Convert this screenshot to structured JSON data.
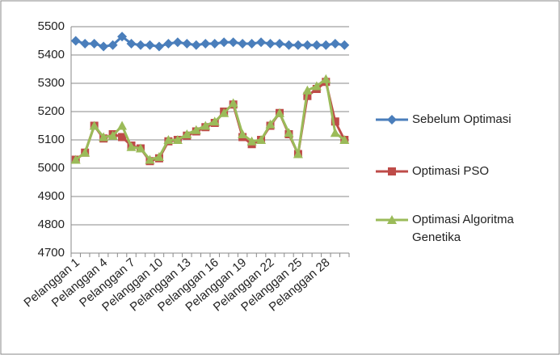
{
  "chart_data": {
    "type": "line",
    "categories": [
      "Pelanggan 1",
      null,
      null,
      "Pelanggan 4",
      null,
      null,
      "Pelanggan 7",
      null,
      null,
      "Pelanggan 10",
      null,
      null,
      "Pelanggan 13",
      null,
      null,
      "Pelanggan 16",
      null,
      null,
      "Pelanggan 19",
      null,
      null,
      "Pelanggan 22",
      null,
      null,
      "Pelanggan 25",
      null,
      null,
      "Pelanggan 28",
      null,
      null
    ],
    "series": [
      {
        "name": "Sebelum Optimasi",
        "color": "#4a7ebb",
        "marker": "diamond",
        "values": [
          5450,
          5440,
          5440,
          5430,
          5435,
          5465,
          5440,
          5435,
          5435,
          5430,
          5440,
          5445,
          5440,
          5435,
          5440,
          5440,
          5445,
          5445,
          5440,
          5440,
          5445,
          5440,
          5440,
          5435,
          5435,
          5435,
          5435,
          5435,
          5440,
          5435
        ]
      },
      {
        "name": "Optimasi PSO",
        "color": "#be4b48",
        "marker": "square",
        "values": [
          5030,
          5055,
          5150,
          5105,
          5120,
          5110,
          5080,
          5070,
          5025,
          5035,
          5095,
          5100,
          5115,
          5130,
          5145,
          5160,
          5200,
          5225,
          5110,
          5085,
          5100,
          5150,
          5195,
          5120,
          5050,
          5255,
          5280,
          5305,
          5165,
          5100
        ]
      },
      {
        "name": "Optimasi Algoritma Genetika",
        "color": "#9bbb59",
        "marker": "triangle",
        "values": [
          5030,
          5055,
          5150,
          5110,
          5115,
          5150,
          5075,
          5070,
          5030,
          5040,
          5100,
          5100,
          5120,
          5135,
          5150,
          5165,
          5195,
          5230,
          5120,
          5095,
          5100,
          5155,
          5195,
          5125,
          5050,
          5275,
          5290,
          5315,
          5125,
          5100
        ]
      }
    ],
    "ylim": [
      4700,
      5500
    ],
    "yticks": [
      4700,
      4800,
      4900,
      5000,
      5100,
      5200,
      5300,
      5400,
      5500
    ],
    "grid": true,
    "legend": "right"
  }
}
